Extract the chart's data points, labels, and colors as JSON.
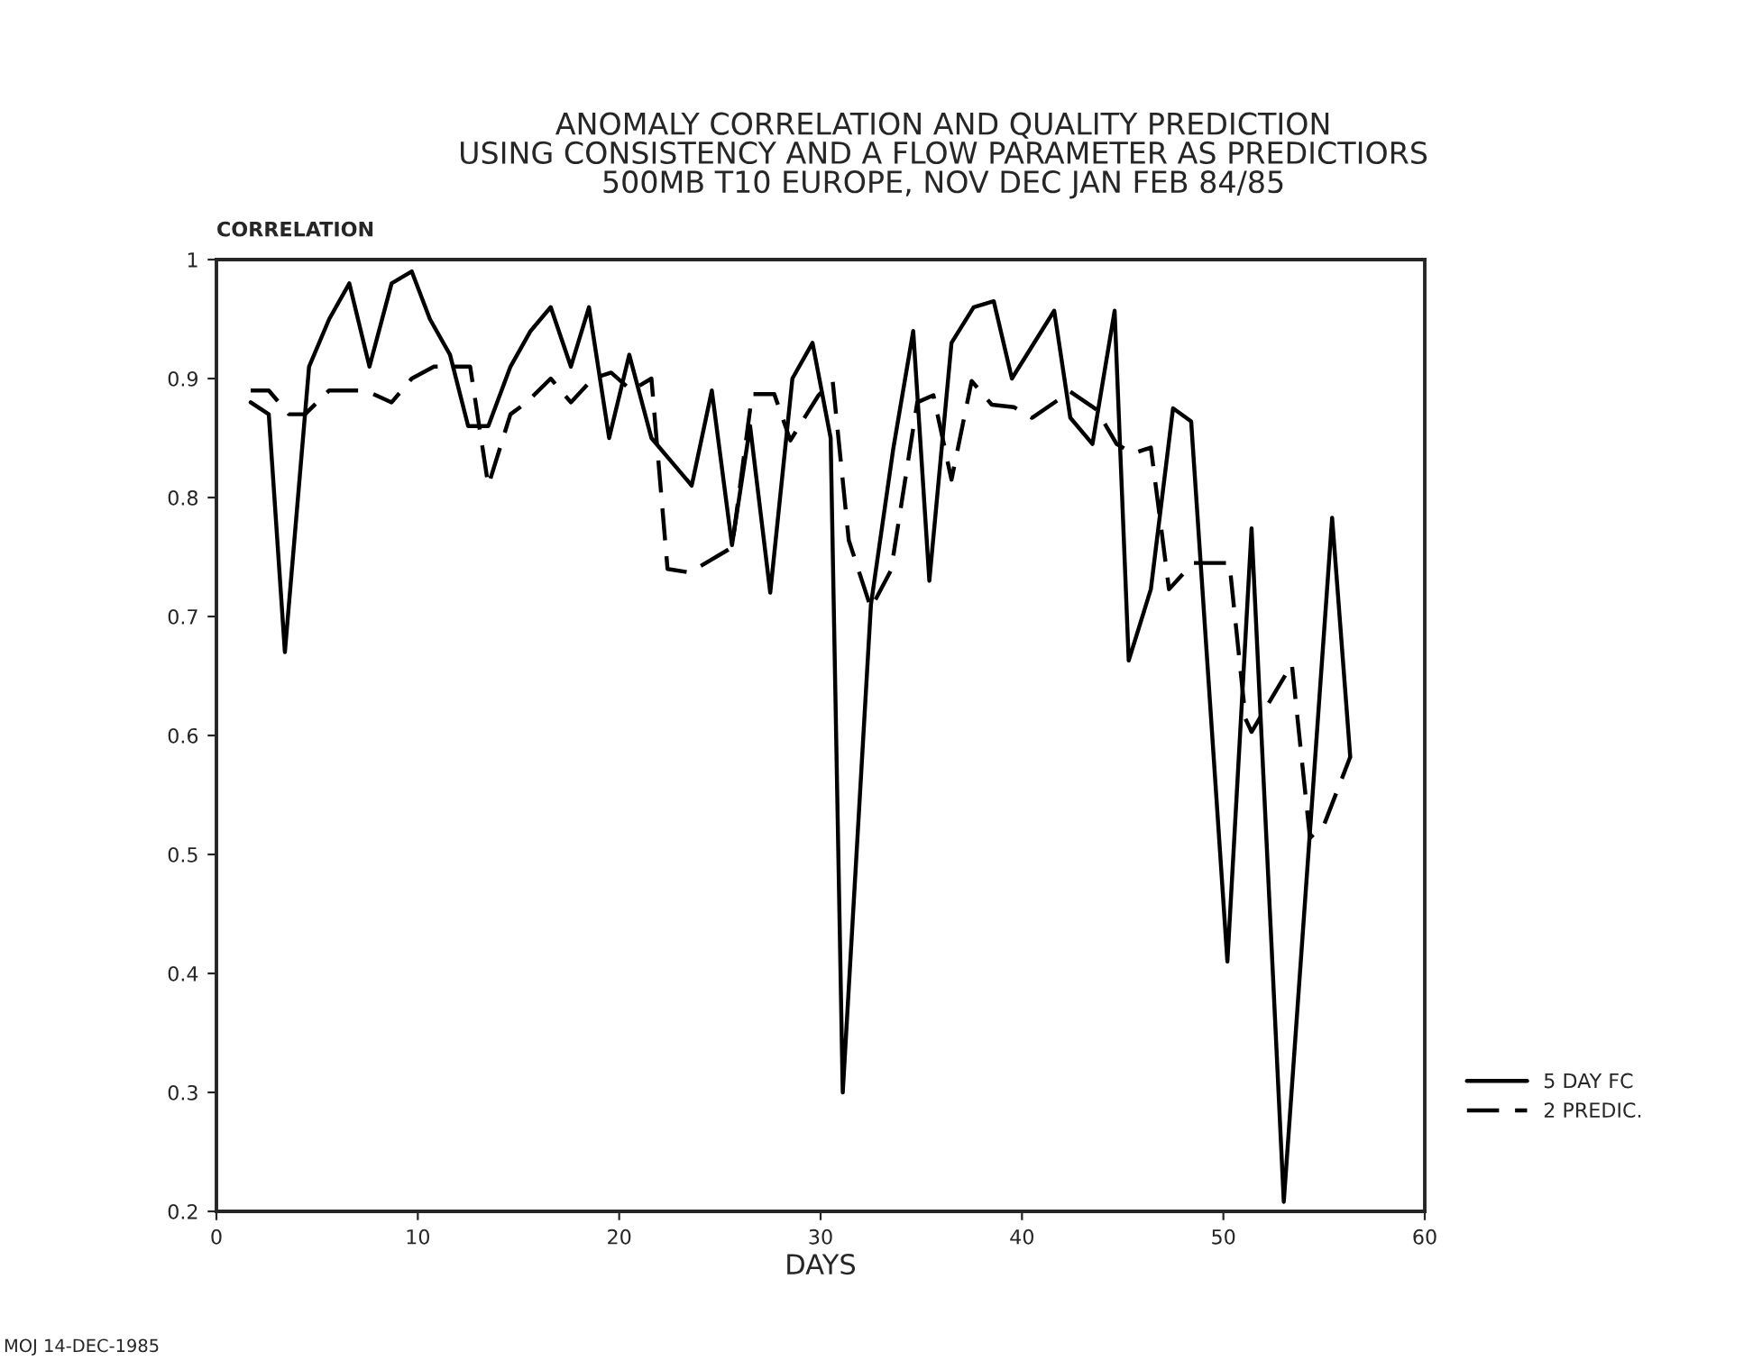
{
  "chart_data": {
    "type": "line",
    "title": "ANOMALY CORRELATION AND QUALITY PREDICTION\nUSING CONSISTENCY AND A FLOW PARAMETER AS PREDICTIORS\n500MB T10 EUROPE, NOV DEC JAN FEB 84/85",
    "xlabel": "DAYS",
    "ylabel": "CORRELATION",
    "xlim": [
      0,
      60
    ],
    "xticks": [
      0,
      10,
      20,
      30,
      40,
      50,
      60
    ],
    "ylim": [
      0.2,
      1
    ],
    "yticks": [
      0.2,
      0.3,
      0.4,
      0.5,
      0.6,
      0.7,
      0.8,
      0.9,
      1
    ],
    "grid": false,
    "legend": "right",
    "marker": "none",
    "annotations": [
      "MOJ 14-DEC-1985"
    ],
    "series": [
      {
        "name": "5 DAY FC",
        "color": "#000000",
        "line_style": "solid",
        "x": [
          1.7,
          2.6,
          3.4,
          4.6,
          5.6,
          6.6,
          7.6,
          8.7,
          9.7,
          10.6,
          11.6,
          12.5,
          13.5,
          14.6,
          15.6,
          16.6,
          17.6,
          18.5,
          19.5,
          20.5,
          21.6,
          22.6,
          23.6,
          24.6,
          25.6,
          26.5,
          27.5,
          28.6,
          29.6,
          30.5,
          31.1,
          32.5,
          33.6,
          34.6,
          35.4,
          36.5,
          37.6,
          38.6,
          39.5,
          41.6,
          42.4,
          43.5,
          44.6,
          45.3,
          46.4,
          47.5,
          48.4,
          50.2,
          51.4,
          53.0,
          55.4,
          56.3
        ],
        "values": [
          0.88,
          0.87,
          0.67,
          0.91,
          0.95,
          0.98,
          0.91,
          0.98,
          0.99,
          0.95,
          0.92,
          0.86,
          0.86,
          0.91,
          0.94,
          0.96,
          0.91,
          0.96,
          0.85,
          0.92,
          0.85,
          0.83,
          0.81,
          0.89,
          0.76,
          0.86,
          0.72,
          0.9,
          0.93,
          0.85,
          0.3,
          0.71,
          0.84,
          0.94,
          0.73,
          0.93,
          0.96,
          0.965,
          0.9,
          0.957,
          0.867,
          0.845,
          0.957,
          0.663,
          0.723,
          0.875,
          0.864,
          0.41,
          0.774,
          0.208,
          0.783,
          0.582
        ]
      },
      {
        "name": "2 PREDIC.",
        "color": "#000000",
        "line_style": "dashed",
        "x": [
          1.7,
          2.6,
          3.6,
          4.4,
          5.6,
          7.4,
          8.7,
          9.7,
          10.8,
          12.6,
          13.5,
          14.6,
          15.4,
          16.6,
          17.6,
          18.7,
          19.6,
          20.6,
          21.6,
          22.4,
          23.5,
          25.6,
          26.6,
          27.7,
          28.5,
          29.9,
          30.6,
          31.4,
          32.5,
          33.5,
          34.8,
          35.6,
          36.5,
          37.5,
          38.5,
          39.6,
          40.5,
          42.4,
          43.7,
          44.7,
          45.5,
          46.4,
          47.3,
          48.5,
          50.3,
          51.1,
          51.4,
          53.4,
          54.3,
          55.0,
          56.3
        ],
        "values": [
          0.89,
          0.89,
          0.87,
          0.87,
          0.89,
          0.89,
          0.88,
          0.9,
          0.91,
          0.91,
          0.81,
          0.87,
          0.88,
          0.9,
          0.88,
          0.9,
          0.905,
          0.89,
          0.9,
          0.74,
          0.737,
          0.758,
          0.887,
          0.887,
          0.848,
          0.886,
          0.898,
          0.764,
          0.707,
          0.739,
          0.88,
          0.886,
          0.815,
          0.898,
          0.878,
          0.876,
          0.867,
          0.889,
          0.874,
          0.845,
          0.837,
          0.842,
          0.723,
          0.745,
          0.745,
          0.614,
          0.603,
          0.66,
          0.514,
          0.525,
          0.582
        ]
      }
    ]
  }
}
